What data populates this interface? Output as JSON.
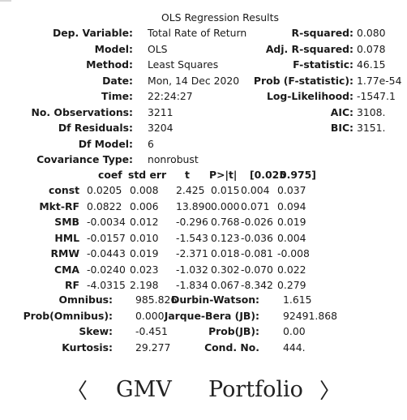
{
  "title": "OLS Regression Results",
  "left_stats": [
    {
      "label": "Dep. Variable:",
      "value": "Total Rate of Return"
    },
    {
      "label": "Model:",
      "value": "OLS"
    },
    {
      "label": "Method:",
      "value": "Least Squares"
    },
    {
      "label": "Date:",
      "value": "Mon, 14 Dec 2020"
    },
    {
      "label": "Time:",
      "value": "22:24:27"
    },
    {
      "label": "No. Observations:",
      "value": "3211"
    },
    {
      "label": "Df Residuals:",
      "value": "3204"
    },
    {
      "label": "Df Model:",
      "value": "6"
    },
    {
      "label": "Covariance Type:",
      "value": "nonrobust"
    }
  ],
  "right_stats": [
    {
      "label": "R-squared:",
      "value": "0.080"
    },
    {
      "label": "Adj. R-squared:",
      "value": "0.078"
    },
    {
      "label": "F-statistic:",
      "value": "46.15"
    },
    {
      "label": "Prob (F-statistic):",
      "value": "1.77e-54"
    },
    {
      "label": "Log-Likelihood:",
      "value": "-1547.1"
    },
    {
      "label": "AIC:",
      "value": "3108."
    },
    {
      "label": "BIC:",
      "value": "3151."
    }
  ],
  "coef_table": {
    "headers": [
      "coef",
      "std err",
      "t",
      "P>|t|",
      "[0.025",
      "0.975]"
    ],
    "rows": [
      {
        "name": "const",
        "cells": [
          "0.0205",
          "0.008",
          "2.425",
          "0.015",
          "0.004",
          "0.037"
        ]
      },
      {
        "name": "Mkt-RF",
        "cells": [
          "0.0822",
          "0.006",
          "13.890",
          "0.000",
          "0.071",
          "0.094"
        ]
      },
      {
        "name": "SMB",
        "cells": [
          "-0.0034",
          "0.012",
          "-0.296",
          "0.768",
          "-0.026",
          "0.019"
        ]
      },
      {
        "name": "HML",
        "cells": [
          "-0.0157",
          "0.010",
          "-1.543",
          "0.123",
          "-0.036",
          "0.004"
        ]
      },
      {
        "name": "RMW",
        "cells": [
          "-0.0443",
          "0.019",
          "-2.371",
          "0.018",
          "-0.081",
          "-0.008"
        ]
      },
      {
        "name": "CMA",
        "cells": [
          "-0.0240",
          "0.023",
          "-1.032",
          "0.302",
          "-0.070",
          "0.022"
        ]
      },
      {
        "name": "RF",
        "cells": [
          "-4.0315",
          "2.198",
          "-1.834",
          "0.067",
          "-8.342",
          "0.279"
        ]
      }
    ]
  },
  "diag": [
    {
      "l1": "Omnibus:",
      "v1": "985.826",
      "l2": "Durbin-Watson:",
      "v2": "1.615"
    },
    {
      "l1": "Prob(Omnibus):",
      "v1": "0.000",
      "l2": "Jarque-Bera (JB):",
      "v2": "92491.868"
    },
    {
      "l1": "Skew:",
      "v1": "-0.451",
      "l2": "Prob(JB):",
      "v2": "0.00"
    },
    {
      "l1": "Kurtosis:",
      "v1": "29.277",
      "l2": "Cond. No.",
      "v2": "444."
    }
  ],
  "nav": {
    "prev": "〈",
    "label_1": "GMV",
    "label_2": "Portfolio",
    "next": "〉"
  }
}
